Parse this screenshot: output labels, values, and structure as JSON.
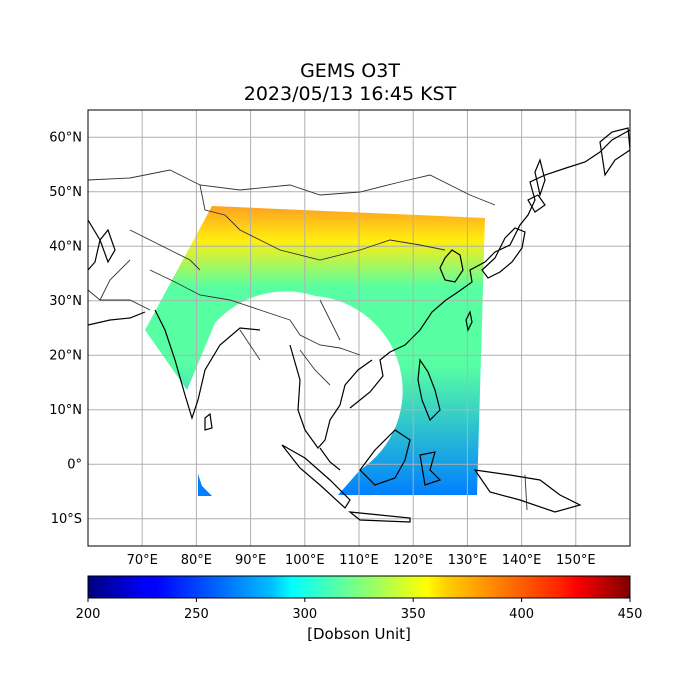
{
  "title": {
    "line1": "GEMS O3T",
    "line2": "2023/05/13 16:45 KST"
  },
  "map": {
    "projection": "plate-carree",
    "lon_range": [
      60,
      160
    ],
    "lat_range": [
      -15,
      65
    ],
    "grid": true,
    "lat_ticks": [
      {
        "value": 60,
        "label": "60°N"
      },
      {
        "value": 50,
        "label": "50°N"
      },
      {
        "value": 40,
        "label": "40°N"
      },
      {
        "value": 30,
        "label": "30°N"
      },
      {
        "value": 20,
        "label": "20°N"
      },
      {
        "value": 10,
        "label": "10°N"
      },
      {
        "value": 0,
        "label": "0°"
      },
      {
        "value": -10,
        "label": "10°S"
      }
    ],
    "lon_ticks": [
      {
        "value": 70,
        "label": "70°E"
      },
      {
        "value": 80,
        "label": "80°E"
      },
      {
        "value": 90,
        "label": "90°E"
      },
      {
        "value": 100,
        "label": "100°E"
      },
      {
        "value": 110,
        "label": "110°E"
      },
      {
        "value": 120,
        "label": "120°E"
      },
      {
        "value": 130,
        "label": "130°E"
      },
      {
        "value": 140,
        "label": "140°E"
      },
      {
        "value": 150,
        "label": "150°E"
      }
    ]
  },
  "colorbar": {
    "label": "[Dobson Unit]",
    "min": 200,
    "max": 450,
    "colormap": "jet",
    "ticks": [
      {
        "value": 200,
        "label": "200"
      },
      {
        "value": 250,
        "label": "250"
      },
      {
        "value": 300,
        "label": "300"
      },
      {
        "value": 350,
        "label": "350"
      },
      {
        "value": 400,
        "label": "400"
      },
      {
        "value": 450,
        "label": "450"
      }
    ]
  },
  "colors": {
    "band_high": "#ffa020",
    "band_yellow": "#ffee10",
    "band_mid": "#58ffa2",
    "band_low": "#0080ff",
    "coastline": "#000000",
    "border": "#333333",
    "grid": "#b0b0b0"
  }
}
